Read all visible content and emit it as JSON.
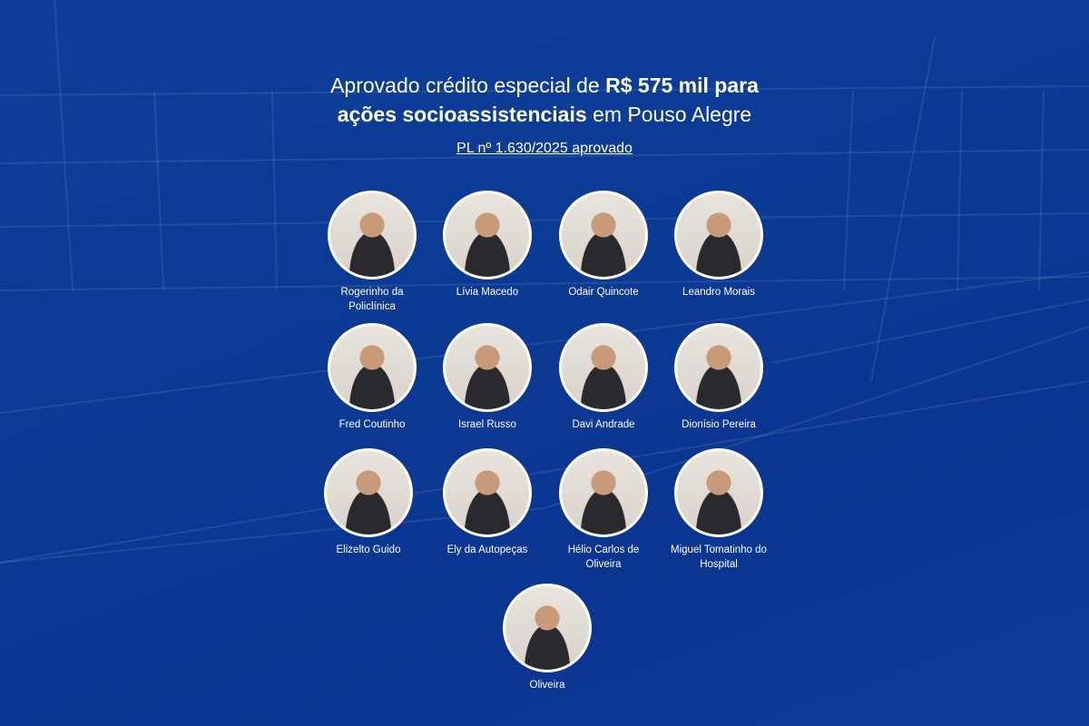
{
  "title": {
    "part1": "Aprovado crédito especial de ",
    "bold1": "R$ 575 mil para",
    "bold2": "ações socioassistenciais",
    "part2": " em Pouso Alegre"
  },
  "subtitle": "PL nº 1.630/2025 aprovado",
  "colors": {
    "background": "#0b3a93",
    "text": "#ffffff"
  },
  "people": [
    {
      "name": "Rogerinho da Policlínica"
    },
    {
      "name": "Lívia Macedo"
    },
    {
      "name": "Odair Quincote"
    },
    {
      "name": "Leandro Morais"
    },
    {
      "name": "Fred Coutinho"
    },
    {
      "name": "Israel Russo"
    },
    {
      "name": "Davi Andrade"
    },
    {
      "name": "Dionísio Pereira"
    },
    {
      "name": "Elizelto Guido"
    },
    {
      "name": "Ely da Autopeças"
    },
    {
      "name": "Hélio Carlos de Oliveira"
    },
    {
      "name": "Miguel Tomatinho do Hospital"
    },
    {
      "name": "Oliveira"
    }
  ]
}
